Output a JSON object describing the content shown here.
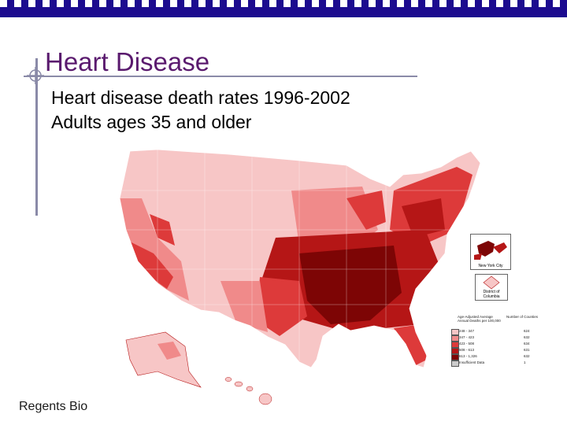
{
  "slide": {
    "title": "Heart Disease",
    "subtitle_line1": "Heart disease death rates 1996-2002",
    "subtitle_line2": "Adults ages 35 and older",
    "footer": "Regents Bio",
    "colors": {
      "top_bar": "#1c0b8f",
      "title": "#5a1a6e",
      "rule": "#8a8aa8"
    }
  },
  "map": {
    "insets": {
      "nyc": "New York City",
      "dc": "District of Columbia"
    },
    "legend": {
      "header_left": "Age-Adjusted Average Annual Deaths per 100,000",
      "header_right": "Number of Counties",
      "colors": [
        "#f7c6c6",
        "#f08a8a",
        "#dd3a3a",
        "#b51616",
        "#7d0505",
        "#cccccc"
      ],
      "rows": [
        {
          "range": "248 - 347",
          "count": "624"
        },
        {
          "range": "347 - 423",
          "count": "632"
        },
        {
          "range": "423 - 508",
          "count": "634"
        },
        {
          "range": "508 - 613",
          "count": "631"
        },
        {
          "range": "613 - 1,326",
          "count": "632"
        },
        {
          "range": "Insufficient Data",
          "count": "1"
        }
      ]
    },
    "region_colors": {
      "lowest": "#f7c6c6",
      "low": "#f08a8a",
      "mid": "#dd3a3a",
      "high": "#b51616",
      "highest": "#7d0505"
    }
  }
}
